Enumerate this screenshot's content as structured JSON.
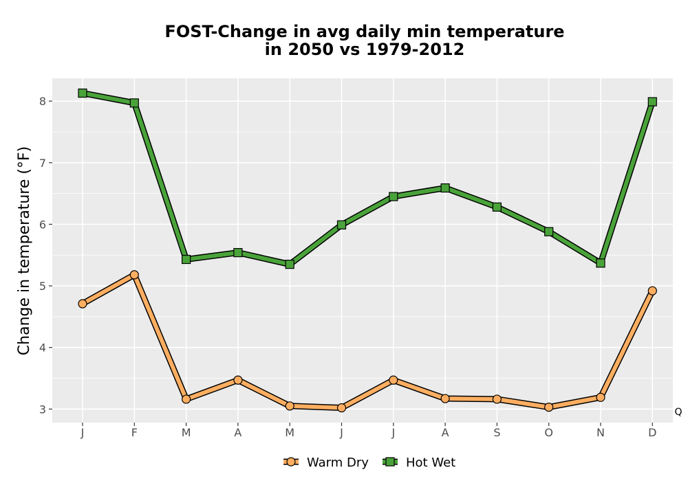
{
  "chart_data": {
    "type": "line",
    "title_line1": "FOST-Change in avg daily min temperature",
    "title_line2": "in 2050 vs 1979-2012",
    "xlabel": "",
    "ylabel": "Change in temperature (°F)",
    "categories": [
      "J",
      "F",
      "M",
      "A",
      "M",
      "J",
      "J",
      "A",
      "S",
      "O",
      "N",
      "D"
    ],
    "yticks": [
      "3",
      "4",
      "5",
      "6",
      "7",
      "8"
    ],
    "ylim": [
      2.78,
      8.37
    ],
    "grid": true,
    "legend_position": "bottom",
    "corner_annotation": "Q",
    "series": [
      {
        "name": "Warm Dry",
        "marker": "circle",
        "color": "#fdae61",
        "values": [
          4.71,
          5.18,
          3.16,
          3.47,
          3.05,
          3.02,
          3.47,
          3.17,
          3.16,
          3.03,
          3.19,
          4.92
        ]
      },
      {
        "name": "Hot Wet",
        "marker": "square",
        "color": "#4aa33a",
        "values": [
          8.13,
          7.97,
          5.43,
          5.54,
          5.35,
          5.99,
          6.45,
          6.59,
          6.28,
          5.88,
          5.37,
          7.99
        ]
      }
    ],
    "colors": {
      "panel": "#ebebeb",
      "grid": "#ffffff",
      "outline": "#000000",
      "tick": "#333333"
    }
  }
}
